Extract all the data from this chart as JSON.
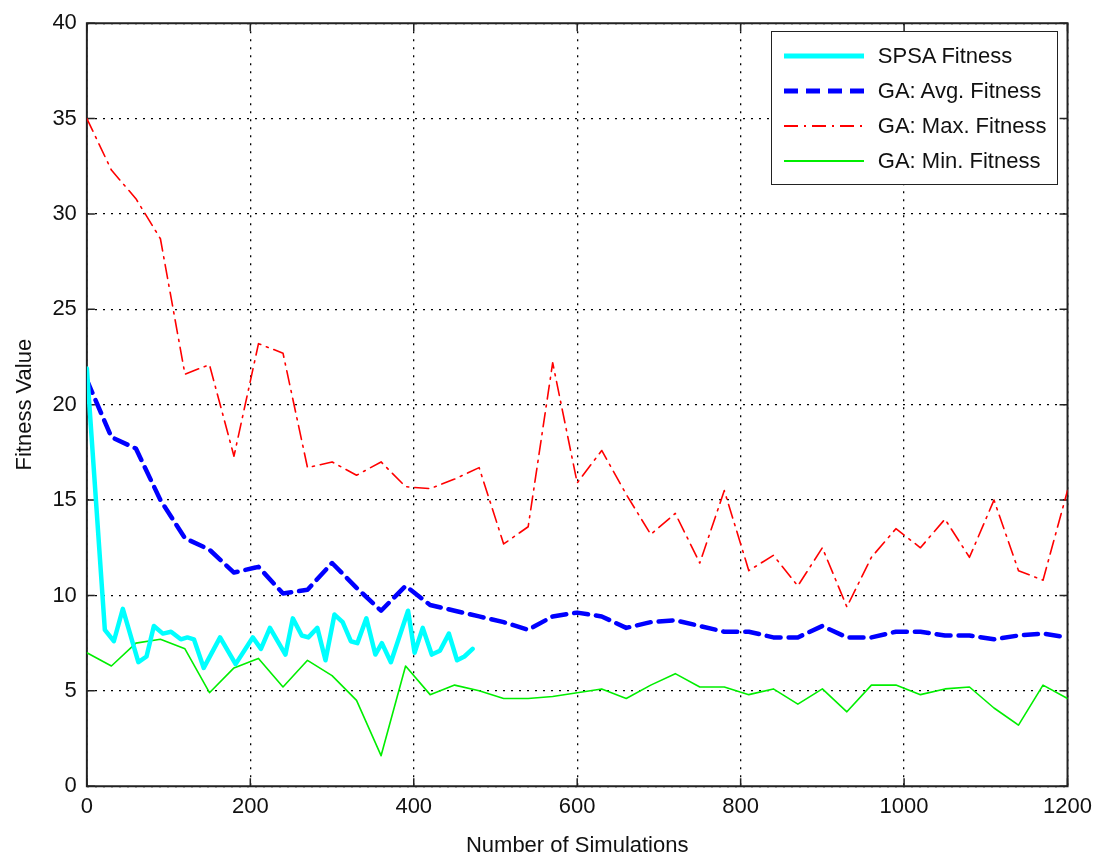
{
  "chart_data": {
    "type": "line",
    "xlabel": "Number of Simulations",
    "ylabel": "Fitness Value",
    "xlim": [
      0,
      1200
    ],
    "ylim": [
      0,
      40
    ],
    "xticks": [
      0,
      200,
      400,
      600,
      800,
      1000,
      1200
    ],
    "yticks": [
      0,
      5,
      10,
      15,
      20,
      25,
      30,
      35,
      40
    ],
    "grid": true,
    "legend": "top right",
    "marker": "none",
    "series": [
      {
        "name": "SPSA Fitness",
        "color": "#00ffff",
        "line_style": "solid",
        "x": [
          0,
          22,
          33,
          44,
          63,
          73,
          82,
          93,
          103,
          115,
          123,
          131,
          143,
          163,
          182,
          203,
          213,
          224,
          243,
          252,
          263,
          271,
          282,
          292,
          303,
          313,
          323,
          331,
          342,
          353,
          361,
          372,
          393,
          401,
          411,
          422,
          432,
          443,
          453,
          462,
          472
        ],
        "values": [
          21.9,
          8.2,
          7.6,
          9.3,
          6.5,
          6.8,
          8.4,
          8.0,
          8.1,
          7.7,
          7.8,
          7.7,
          6.2,
          7.8,
          6.4,
          7.8,
          7.2,
          8.3,
          6.9,
          8.8,
          7.9,
          7.8,
          8.3,
          6.6,
          9.0,
          8.6,
          7.6,
          7.5,
          8.8,
          6.9,
          7.5,
          6.5,
          9.2,
          7.0,
          8.3,
          6.9,
          7.1,
          8.0,
          6.6,
          6.8,
          7.2
        ]
      },
      {
        "name": "GA: Avg. Fitness",
        "color": "#0000ff",
        "line_style": "dashed",
        "x": [
          0,
          30,
          60,
          90,
          120,
          150,
          180,
          210,
          240,
          270,
          300,
          330,
          360,
          390,
          420,
          450,
          480,
          510,
          540,
          570,
          600,
          630,
          660,
          690,
          720,
          750,
          780,
          810,
          840,
          870,
          900,
          930,
          960,
          990,
          1020,
          1050,
          1080,
          1110,
          1140,
          1170,
          1200
        ],
        "values": [
          21.3,
          18.3,
          17.7,
          15,
          13,
          12.4,
          11.2,
          11.5,
          10.1,
          10.3,
          11.7,
          10.4,
          9.2,
          10.5,
          9.5,
          9.2,
          8.9,
          8.6,
          8.2,
          8.9,
          9.1,
          8.9,
          8.3,
          8.6,
          8.7,
          8.4,
          8.1,
          8.1,
          7.8,
          7.8,
          8.4,
          7.8,
          7.8,
          8.1,
          8.1,
          7.9,
          7.9,
          7.7,
          7.9,
          8,
          7.8
        ]
      },
      {
        "name": "GA: Max. Fitness",
        "color": "#ff0000",
        "line_style": "dashdot",
        "x": [
          0,
          30,
          60,
          90,
          120,
          150,
          180,
          210,
          240,
          270,
          300,
          330,
          360,
          390,
          420,
          450,
          480,
          510,
          540,
          570,
          600,
          630,
          660,
          690,
          720,
          750,
          780,
          810,
          840,
          870,
          900,
          930,
          960,
          990,
          1020,
          1050,
          1080,
          1110,
          1140,
          1170,
          1200
        ],
        "values": [
          35,
          32.3,
          30.8,
          28.7,
          21.6,
          22.1,
          17.3,
          23.2,
          22.7,
          16.7,
          17,
          16.3,
          17,
          15.7,
          15.6,
          16.1,
          16.7,
          12.7,
          13.6,
          22.2,
          15.9,
          17.6,
          15.3,
          13.2,
          14.3,
          11.7,
          15.5,
          11.3,
          12.1,
          10.5,
          12.5,
          9.4,
          12,
          13.5,
          12.5,
          14,
          12,
          15,
          11.3,
          10.8,
          15.5
        ]
      },
      {
        "name": "GA: Min. Fitness",
        "color": "#00ee00",
        "line_style": "solid",
        "x": [
          0,
          30,
          60,
          90,
          120,
          150,
          180,
          210,
          240,
          270,
          300,
          330,
          360,
          390,
          420,
          450,
          480,
          510,
          540,
          570,
          600,
          630,
          660,
          690,
          720,
          750,
          780,
          810,
          840,
          870,
          900,
          930,
          960,
          990,
          1020,
          1050,
          1080,
          1110,
          1140,
          1170,
          1200
        ],
        "values": [
          7,
          6.3,
          7.5,
          7.7,
          7.2,
          4.9,
          6.2,
          6.7,
          5.2,
          6.6,
          5.8,
          4.5,
          1.6,
          6.3,
          4.8,
          5.3,
          5,
          4.6,
          4.6,
          4.7,
          4.9,
          5.1,
          4.6,
          5.3,
          5.9,
          5.2,
          5.2,
          4.8,
          5.1,
          4.3,
          5.1,
          3.9,
          5.3,
          5.3,
          4.8,
          5.1,
          5.2,
          4.1,
          3.2,
          5.3,
          4.6
        ]
      }
    ]
  }
}
